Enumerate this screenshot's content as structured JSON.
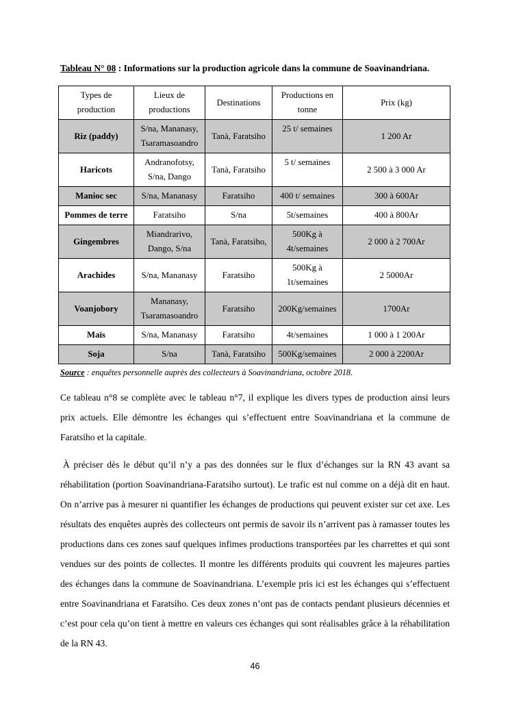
{
  "caption": {
    "number": "Tableau N° 08",
    "rest": " :  Informations sur la production agricole dans la commune de Soavinandriana."
  },
  "table": {
    "headers": [
      "Types de\nproduction",
      "Lieux de\nproductions",
      "Destinations",
      "Productions en\ntonne",
      "Prix (kg)"
    ],
    "rows": [
      [
        "Riz (paddy)",
        "S/na, Mananasy,\nTsaramasoandro",
        "Tanà, Faratsiho",
        "25 t/ semaines\n ",
        "1 200 Ar"
      ],
      [
        "Haricots",
        "Andranofotsy,\nS/na, Dango",
        "Tanà, Faratsiho",
        "5 t/ semaines\n ",
        "2 500 à 3 000 Ar"
      ],
      [
        "Manioc sec",
        "S/na, Mananasy",
        "Faratsiho",
        "400 t/ semaines",
        "300 à 600Ar"
      ],
      [
        "Pommes de terre",
        "Faratsiho",
        "S/na",
        "5t/semaines",
        "400 à 800Ar"
      ],
      [
        "Gingembres",
        "Miandrarivo,\nDango, S/na",
        "Tanà, Faratsiho,",
        "500Kg à\n4t/semaines",
        "2 000 à 2 700Ar"
      ],
      [
        "Arachides",
        "S/na, Mananasy",
        "Faratsiho",
        "500Kg à\n1t/semaines",
        "2 5000Ar"
      ],
      [
        "Voanjobory",
        "Mananasy,\nTsaramasoandro",
        "Faratsiho",
        "200Kg/semaines",
        "1700Ar"
      ],
      [
        "Maïs",
        "S/na, Mananasy",
        "Faratsiho",
        "4t/semaines",
        "1 000 à 1 200Ar"
      ],
      [
        "Soja",
        "S/na",
        "Tanà, Faratsiho",
        "500Kg/semaines",
        "2 000 à 2200Ar"
      ]
    ]
  },
  "source": {
    "label": "Source",
    "text": " : enquêtes personnelle auprès des collecteurs à Soavinandriana, octobre 2018."
  },
  "paragraphs": [
    "Ce tableau n°8 se complète avec le tableau n°7, il explique les divers types de production ainsi leurs prix actuels. Elle démontre les échanges qui s’effectuent entre Soavinandriana et la commune de Faratsiho et la capitale.",
    "À préciser dès le début qu’il n’y a pas des données sur le flux d’échanges sur la RN 43 avant sa réhabilitation (portion Soavinandriana-Faratsiho surtout). Le trafic est nul comme on a déjà dit en haut. On n’arrive pas à mesurer ni quantifier les échanges de productions qui peuvent exister sur cet axe. Les résultats des enquêtes auprès des collecteurs ont permis de savoir ils n’arrivent pas à ramasser toutes les productions dans ces zones sauf quelques infimes productions transportées par les charrettes et qui sont vendues sur des  points de collectes. Il montre les différents produits qui couvrent les majeures parties des échanges dans la commune de Soavinandriana. L’exemple pris ici est les échanges qui s’effectuent entre Soavinandriana et Faratsiho. Ces deux zones n’ont pas de contacts pendant plusieurs décennies et c’est pour cela qu’on tient à mettre en valeurs ces échanges qui sont réalisables grâce à la réhabilitation de la RN 43."
  ],
  "page_number": "46",
  "colors": {
    "row_shading": "#c8c8c8",
    "border": "#000000",
    "text": "#000000",
    "page_background": "#ffffff"
  }
}
